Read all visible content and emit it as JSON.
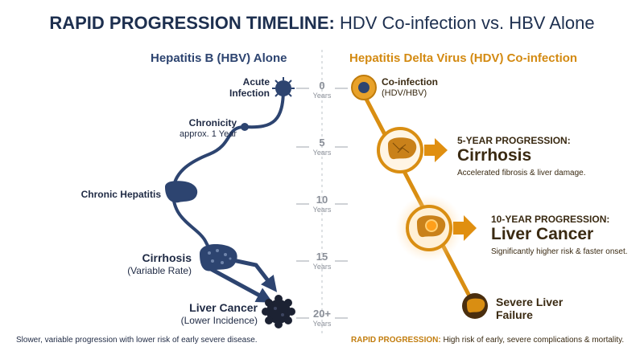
{
  "title": {
    "bold": "RAPID PROGRESSION TIMELINE:",
    "rest": " HDV Co-infection vs. HBV Alone"
  },
  "left_header": "Hepatitis B (HBV) Alone",
  "right_header": "Hepatitis Delta Virus (HDV) Co-infection",
  "timeline": [
    {
      "num": "0",
      "unit": "Years"
    },
    {
      "num": "5",
      "unit": "Years"
    },
    {
      "num": "10",
      "unit": "Years"
    },
    {
      "num": "15",
      "unit": "Years"
    },
    {
      "num": "20+",
      "unit": "Years"
    }
  ],
  "hbv": {
    "acute_l1": "Acute",
    "acute_l2": "Infection",
    "chronicity": "Chronicity",
    "chronicity_sub": "approx. 1 Year",
    "chronic_hepatitis": "Chronic Hepatitis",
    "cirrhosis": "Cirrhosis",
    "cirrhosis_sub": "(Variable Rate)",
    "cancer": "Liver Cancer",
    "cancer_sub": "(Lower Incidence)",
    "footer": "Slower, variable progression with lower risk of early severe disease."
  },
  "hdv": {
    "coinfection": "Co-infection",
    "coinfection_sub": "(HDV/HBV)",
    "p5_head": "5-YEAR PROGRESSION:",
    "p5_big": "Cirrhosis",
    "p5_desc": "Accelerated fibrosis & liver damage.",
    "p10_head": "10-YEAR PROGRESSION:",
    "p10_big": "Liver Cancer",
    "p10_desc": "Significantly higher risk & faster onset.",
    "failure_l1": "Severe Liver",
    "failure_l2": "Failure",
    "footer_bold": "RAPID PROGRESSION:",
    "footer_rest": " High risk of early, severe complications & mortality."
  },
  "colors": {
    "hbv_dark": "#2d4470",
    "hdv_gold": "#d98e12",
    "hdv_light": "#f6d9a4"
  }
}
